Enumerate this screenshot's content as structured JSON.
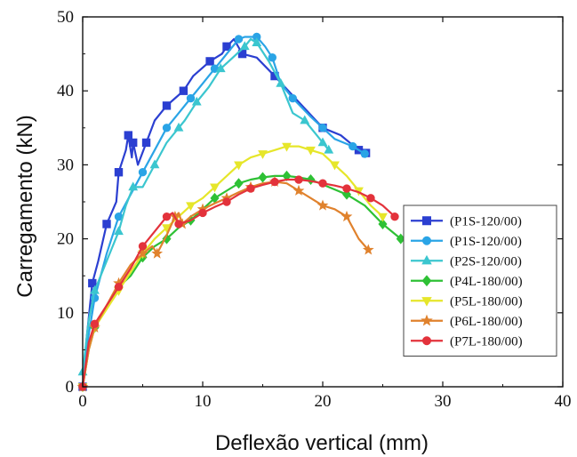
{
  "chart_data": {
    "type": "line",
    "title": "",
    "xlabel": "Deflexão vertical (mm)",
    "ylabel": "Carregamento (kN)",
    "xlim": [
      0,
      40
    ],
    "ylim": [
      0,
      50
    ],
    "xticks": [
      0,
      10,
      20,
      30,
      40
    ],
    "yticks": [
      0,
      10,
      20,
      30,
      40,
      50
    ],
    "grid": false,
    "legend_position": "right",
    "series": [
      {
        "name": "(P1S-120/00)",
        "color": "#2b3fd1",
        "marker": "square",
        "points": [
          [
            0,
            0
          ],
          [
            0.3,
            6
          ],
          [
            0.8,
            14
          ],
          [
            1.3,
            17
          ],
          [
            2,
            22
          ],
          [
            2.8,
            25
          ],
          [
            3,
            29
          ],
          [
            3.6,
            32
          ],
          [
            3.8,
            34
          ],
          [
            4.1,
            31
          ],
          [
            4.2,
            33
          ],
          [
            4.6,
            30
          ],
          [
            5.3,
            33
          ],
          [
            6,
            36
          ],
          [
            7,
            38
          ],
          [
            7.7,
            39
          ],
          [
            8.4,
            40
          ],
          [
            9.2,
            42
          ],
          [
            10.6,
            44
          ],
          [
            11.6,
            45
          ],
          [
            12,
            46
          ],
          [
            12.6,
            47
          ],
          [
            13.3,
            45
          ],
          [
            14.5,
            44.5
          ],
          [
            16,
            42
          ],
          [
            18,
            38.5
          ],
          [
            20,
            35
          ],
          [
            21.5,
            34
          ],
          [
            23,
            32
          ],
          [
            23.6,
            31.6
          ]
        ]
      },
      {
        "name": "(P1S-120/00)",
        "color": "#2aa4e6",
        "marker": "circle",
        "points": [
          [
            0,
            0
          ],
          [
            0.3,
            5
          ],
          [
            1,
            12
          ],
          [
            2,
            18
          ],
          [
            3,
            23
          ],
          [
            4,
            26
          ],
          [
            5,
            29
          ],
          [
            6,
            32
          ],
          [
            7,
            35
          ],
          [
            8,
            37
          ],
          [
            9,
            39
          ],
          [
            10,
            41
          ],
          [
            11,
            43
          ],
          [
            12,
            45
          ],
          [
            13,
            47
          ],
          [
            13.5,
            47.3
          ],
          [
            14.5,
            47.3
          ],
          [
            15.2,
            46
          ],
          [
            15.8,
            44.5
          ],
          [
            16.5,
            41
          ],
          [
            17.5,
            39
          ],
          [
            19,
            36.5
          ],
          [
            20,
            35
          ],
          [
            21,
            33.5
          ],
          [
            22.5,
            32.5
          ],
          [
            23.5,
            31.5
          ]
        ]
      },
      {
        "name": "(P2S-120/00)",
        "color": "#3bc6cf",
        "marker": "triangle-up",
        "points": [
          [
            0,
            2
          ],
          [
            0.5,
            9
          ],
          [
            1,
            13
          ],
          [
            2,
            17
          ],
          [
            3,
            21
          ],
          [
            3.6,
            24.5
          ],
          [
            4.2,
            27
          ],
          [
            5,
            27
          ],
          [
            6,
            30
          ],
          [
            7,
            33
          ],
          [
            8,
            35
          ],
          [
            8.5,
            36
          ],
          [
            9.5,
            38.5
          ],
          [
            10.5,
            40.5
          ],
          [
            11.5,
            43
          ],
          [
            12.5,
            44.5
          ],
          [
            13.5,
            46
          ],
          [
            14,
            47
          ],
          [
            14.5,
            46.5
          ],
          [
            15.5,
            44
          ],
          [
            16.5,
            41
          ],
          [
            17.5,
            37
          ],
          [
            18.5,
            36
          ],
          [
            19.5,
            34
          ],
          [
            20,
            33
          ],
          [
            20.5,
            32
          ]
        ]
      },
      {
        "name": "(P4L-180/00)",
        "color": "#2ec135",
        "marker": "diamond",
        "points": [
          [
            0,
            0
          ],
          [
            0.5,
            5
          ],
          [
            1,
            8
          ],
          [
            2,
            11
          ],
          [
            3,
            13.5
          ],
          [
            4,
            15
          ],
          [
            5,
            17.5
          ],
          [
            6,
            19
          ],
          [
            7,
            20
          ],
          [
            8,
            21.5
          ],
          [
            9,
            22.5
          ],
          [
            10,
            24
          ],
          [
            11,
            25.5
          ],
          [
            12,
            26.5
          ],
          [
            13,
            27.5
          ],
          [
            14,
            28
          ],
          [
            15,
            28.3
          ],
          [
            16,
            28.5
          ],
          [
            17,
            28.5
          ],
          [
            18,
            28.3
          ],
          [
            19,
            28
          ],
          [
            20.5,
            27
          ],
          [
            22,
            26
          ],
          [
            23.5,
            24.5
          ],
          [
            25,
            22
          ],
          [
            26.5,
            20
          ]
        ]
      },
      {
        "name": "(P5L-180/00)",
        "color": "#e6e62a",
        "marker": "triangle-down",
        "points": [
          [
            0,
            0
          ],
          [
            0.5,
            5
          ],
          [
            1,
            8
          ],
          [
            2,
            10.5
          ],
          [
            3,
            13
          ],
          [
            4,
            15.5
          ],
          [
            5,
            18
          ],
          [
            6,
            20
          ],
          [
            7,
            21.5
          ],
          [
            8,
            23
          ],
          [
            9,
            24.5
          ],
          [
            10,
            25.5
          ],
          [
            11,
            27
          ],
          [
            12,
            28.5
          ],
          [
            13,
            30
          ],
          [
            14,
            31
          ],
          [
            15,
            31.5
          ],
          [
            16,
            32
          ],
          [
            17,
            32.5
          ],
          [
            18,
            32.5
          ],
          [
            19,
            32
          ],
          [
            20,
            31.5
          ],
          [
            21,
            30
          ],
          [
            22,
            28.5
          ],
          [
            23,
            26.5
          ],
          [
            24,
            24.5
          ],
          [
            25,
            23
          ]
        ]
      },
      {
        "name": "(P6L-180/00)",
        "color": "#e0822d",
        "marker": "star",
        "points": [
          [
            0,
            0
          ],
          [
            0.5,
            5
          ],
          [
            1,
            8
          ],
          [
            2,
            11
          ],
          [
            3,
            14
          ],
          [
            4,
            16.5
          ],
          [
            5,
            18
          ],
          [
            5.8,
            19
          ],
          [
            6.2,
            18
          ],
          [
            7,
            20.5
          ],
          [
            7.7,
            23
          ],
          [
            8,
            23.5
          ],
          [
            8.3,
            22
          ],
          [
            9,
            23
          ],
          [
            10,
            24
          ],
          [
            11,
            24.8
          ],
          [
            12,
            25.5
          ],
          [
            13,
            26.3
          ],
          [
            14,
            27
          ],
          [
            15,
            27.5
          ],
          [
            16,
            27.7
          ],
          [
            17,
            27.5
          ],
          [
            18,
            26.5
          ],
          [
            19,
            25.5
          ],
          [
            20,
            24.5
          ],
          [
            21,
            24
          ],
          [
            22,
            23
          ],
          [
            23,
            20
          ],
          [
            23.8,
            18.5
          ]
        ]
      },
      {
        "name": "(P7L-180/00)",
        "color": "#e3323b",
        "marker": "circle",
        "points": [
          [
            0,
            0
          ],
          [
            0.5,
            6
          ],
          [
            1,
            8.5
          ],
          [
            2,
            11
          ],
          [
            3,
            13.5
          ],
          [
            4,
            16
          ],
          [
            5,
            19
          ],
          [
            6,
            21
          ],
          [
            7,
            23
          ],
          [
            7.5,
            23.5
          ],
          [
            8,
            22
          ],
          [
            9,
            22.5
          ],
          [
            10,
            23.5
          ],
          [
            11,
            24.3
          ],
          [
            12,
            25
          ],
          [
            13,
            26
          ],
          [
            14,
            26.8
          ],
          [
            15,
            27.3
          ],
          [
            16,
            27.7
          ],
          [
            17,
            28
          ],
          [
            18,
            28
          ],
          [
            19,
            27.8
          ],
          [
            20,
            27.5
          ],
          [
            21,
            27.2
          ],
          [
            22,
            26.8
          ],
          [
            23,
            26.3
          ],
          [
            24,
            25.5
          ],
          [
            25,
            24.5
          ],
          [
            26,
            23
          ]
        ]
      }
    ]
  }
}
